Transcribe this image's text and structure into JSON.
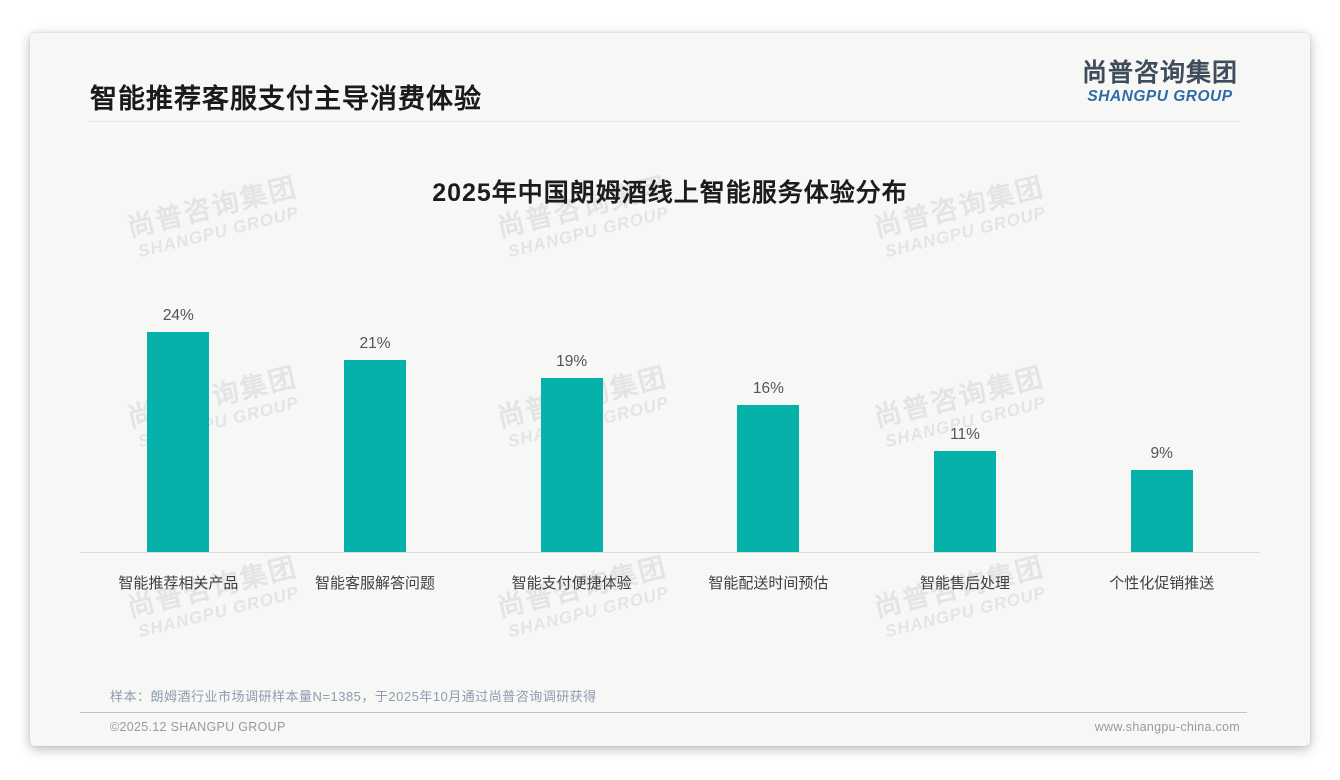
{
  "page": {
    "title": "智能推荐客服支付主导消费体验",
    "logo": {
      "cn": "尚普咨询集团",
      "en": "SHANGPU GROUP"
    },
    "watermark": {
      "cn": "尚普咨询集团",
      "en": "SHANGPU GROUP"
    },
    "footer": {
      "note": "样本：朗姆酒行业市场调研样本量N=1385，于2025年10月通过尚普咨询调研获得",
      "copyright": "©2025.12 SHANGPU GROUP",
      "website": "www.shangpu-china.com"
    }
  },
  "chart_data": {
    "type": "bar",
    "title": "2025年中国朗姆酒线上智能服务体验分布",
    "categories": [
      "智能推荐相关产品",
      "智能客服解答问题",
      "智能支付便捷体验",
      "智能配送时间预估",
      "智能售后处理",
      "个性化促销推送"
    ],
    "values": [
      24,
      21,
      19,
      16,
      11,
      9
    ],
    "value_labels": [
      "24%",
      "21%",
      "19%",
      "16%",
      "11%",
      "9%"
    ],
    "unit": "%",
    "ylim": [
      0,
      26
    ],
    "bar_color": "#05B1A8",
    "grid": false,
    "legend": false,
    "orientation": "vertical"
  }
}
